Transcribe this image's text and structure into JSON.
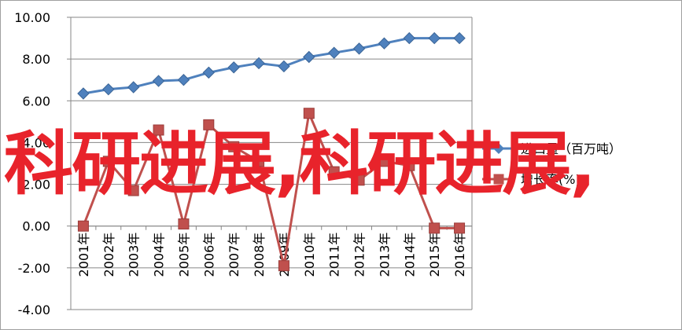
{
  "overlay": {
    "text": "科研进展,科研进展,"
  },
  "chart_data": {
    "type": "line",
    "categories": [
      "2001年",
      "2002年",
      "2003年",
      "2004年",
      "2005年",
      "2006年",
      "2007年",
      "2008年",
      "2009年",
      "2010年",
      "2011年",
      "2012年",
      "2013年",
      "2014年",
      "2015年",
      "2016年"
    ],
    "series": [
      {
        "name": "进口量（百万吨）",
        "color": "#4f81bd",
        "marker": "diamond",
        "values": [
          6.35,
          6.55,
          6.65,
          6.95,
          7.0,
          7.35,
          7.6,
          7.8,
          7.65,
          8.1,
          8.3,
          8.5,
          8.75,
          9.0,
          9.0,
          9.0
        ]
      },
      {
        "name": "增长率(%)",
        "color": "#c0504d",
        "marker": "square",
        "values": [
          0.0,
          3.1,
          1.7,
          4.6,
          0.1,
          4.85,
          3.8,
          3.1,
          -1.9,
          5.4,
          2.6,
          2.2,
          3.1,
          2.9,
          -0.1,
          -0.1
        ]
      }
    ],
    "yticks": [
      "-4.00",
      "-2.00",
      "0.00",
      "2.00",
      "4.00",
      "6.00",
      "8.00",
      "10.00"
    ],
    "ylim": [
      -4,
      10
    ],
    "grid": true,
    "legend_position": "right"
  }
}
